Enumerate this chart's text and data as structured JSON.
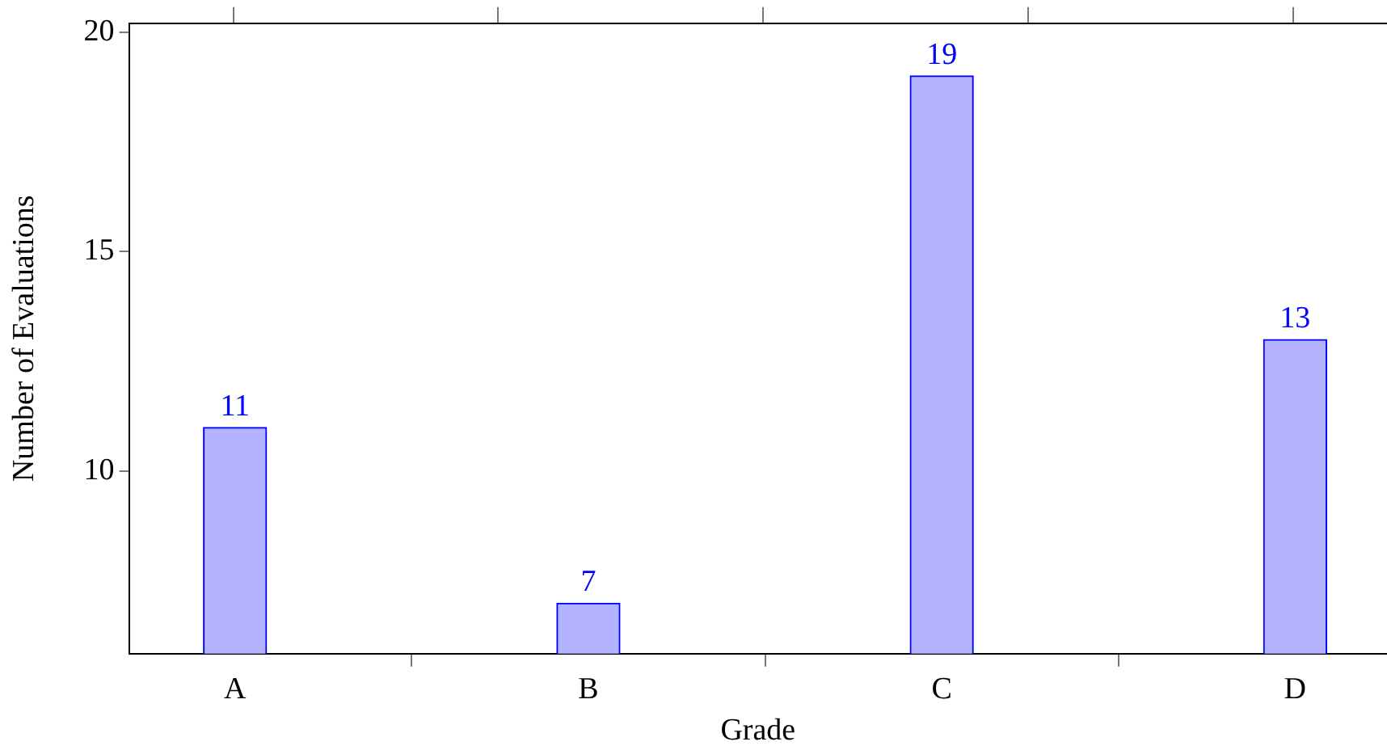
{
  "chart_data": {
    "type": "bar",
    "xlabel": "Grade",
    "ylabel": "Number of Evaluations",
    "categories": [
      "A",
      "B",
      "C",
      "D"
    ],
    "series": [
      {
        "color": "#b3b3ff",
        "values": [
          11,
          7,
          19,
          13
        ]
      }
    ],
    "ylim": [
      5.85,
      20.2
    ],
    "yticks": [
      10,
      15,
      20
    ],
    "grid": false,
    "legend": false,
    "data_labels": true
  }
}
